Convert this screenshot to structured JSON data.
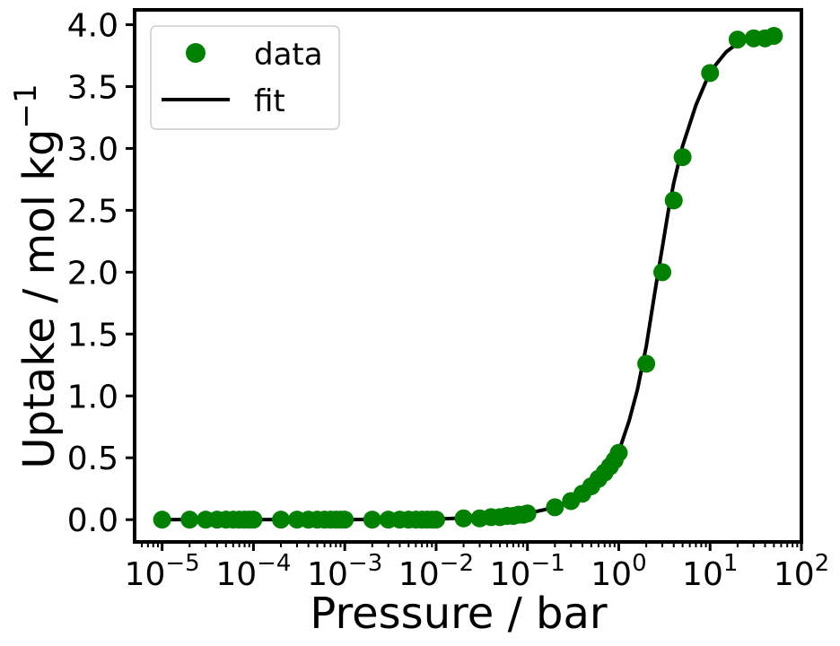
{
  "chart_data": {
    "type": "scatter",
    "xlabel": "Pressure / bar",
    "ylabel": "Uptake / mol kg",
    "ylabel_sup": "−1",
    "xscale": "log",
    "xlim": [
      5e-06,
      100
    ],
    "ylim": [
      -0.18,
      4.12
    ],
    "xticks": [
      {
        "exp": "−5",
        "value": 1e-05
      },
      {
        "exp": "−4",
        "value": 0.0001
      },
      {
        "exp": "−3",
        "value": 0.001
      },
      {
        "exp": "−2",
        "value": 0.01
      },
      {
        "exp": "−1",
        "value": 0.1
      },
      {
        "exp": "0",
        "value": 1
      },
      {
        "exp": "1",
        "value": 10
      },
      {
        "exp": "2",
        "value": 100
      }
    ],
    "xtick_base": "10",
    "yticks": [
      0.0,
      0.5,
      1.0,
      1.5,
      2.0,
      2.5,
      3.0,
      3.5,
      4.0
    ],
    "ytick_labels": [
      "0.0",
      "0.5",
      "1.0",
      "1.5",
      "2.0",
      "2.5",
      "3.0",
      "3.5",
      "4.0"
    ],
    "grid": false,
    "legend_position": "top-left",
    "series": [
      {
        "name": "data",
        "style": "markers",
        "color": "#008000",
        "points": [
          [
            1e-05,
            0.0
          ],
          [
            2e-05,
            0.0
          ],
          [
            3e-05,
            0.0
          ],
          [
            4e-05,
            0.0
          ],
          [
            5e-05,
            0.0
          ],
          [
            6e-05,
            0.0
          ],
          [
            7e-05,
            0.0
          ],
          [
            8e-05,
            0.0
          ],
          [
            9e-05,
            0.0
          ],
          [
            0.0001,
            0.0
          ],
          [
            0.0002,
            0.0
          ],
          [
            0.0003,
            0.0
          ],
          [
            0.0004,
            0.0
          ],
          [
            0.0005,
            0.0
          ],
          [
            0.0006,
            0.0
          ],
          [
            0.0007,
            0.0
          ],
          [
            0.0008,
            0.0
          ],
          [
            0.0009,
            0.0
          ],
          [
            0.001,
            0.0
          ],
          [
            0.002,
            0.0
          ],
          [
            0.003,
            0.0
          ],
          [
            0.004,
            0.0
          ],
          [
            0.005,
            0.0
          ],
          [
            0.006,
            0.0
          ],
          [
            0.007,
            0.0
          ],
          [
            0.008,
            0.0
          ],
          [
            0.009,
            0.0
          ],
          [
            0.01,
            0.0
          ],
          [
            0.02,
            0.01
          ],
          [
            0.03,
            0.01
          ],
          [
            0.04,
            0.02
          ],
          [
            0.05,
            0.02
          ],
          [
            0.06,
            0.03
          ],
          [
            0.07,
            0.03
          ],
          [
            0.08,
            0.04
          ],
          [
            0.09,
            0.04
          ],
          [
            0.1,
            0.05
          ],
          [
            0.2,
            0.1
          ],
          [
            0.3,
            0.15
          ],
          [
            0.4,
            0.21
          ],
          [
            0.5,
            0.27
          ],
          [
            0.6,
            0.33
          ],
          [
            0.7,
            0.38
          ],
          [
            0.8,
            0.43
          ],
          [
            0.9,
            0.48
          ],
          [
            1.0,
            0.54
          ],
          [
            2.0,
            1.26
          ],
          [
            3.0,
            2.0
          ],
          [
            4.0,
            2.58
          ],
          [
            5.0,
            2.93
          ],
          [
            10.0,
            3.61
          ],
          [
            20.0,
            3.88
          ],
          [
            30.0,
            3.89
          ],
          [
            40.0,
            3.89
          ],
          [
            50.0,
            3.91
          ]
        ]
      },
      {
        "name": "fit",
        "style": "line",
        "color": "#000000",
        "points": [
          [
            1e-05,
            0.0
          ],
          [
            0.0001,
            0.0
          ],
          [
            0.001,
            0.0
          ],
          [
            0.01,
            0.005
          ],
          [
            0.05,
            0.025
          ],
          [
            0.1,
            0.05
          ],
          [
            0.2,
            0.1
          ],
          [
            0.3,
            0.15
          ],
          [
            0.5,
            0.26
          ],
          [
            0.7,
            0.37
          ],
          [
            1.0,
            0.55
          ],
          [
            1.3,
            0.8
          ],
          [
            1.6,
            1.05
          ],
          [
            2.0,
            1.4
          ],
          [
            2.5,
            1.85
          ],
          [
            3.0,
            2.2
          ],
          [
            3.5,
            2.5
          ],
          [
            4.0,
            2.72
          ],
          [
            5.0,
            3.02
          ],
          [
            7.0,
            3.35
          ],
          [
            10.0,
            3.62
          ],
          [
            15.0,
            3.78
          ],
          [
            20.0,
            3.85
          ],
          [
            30.0,
            3.89
          ],
          [
            50.0,
            3.92
          ]
        ]
      }
    ]
  }
}
